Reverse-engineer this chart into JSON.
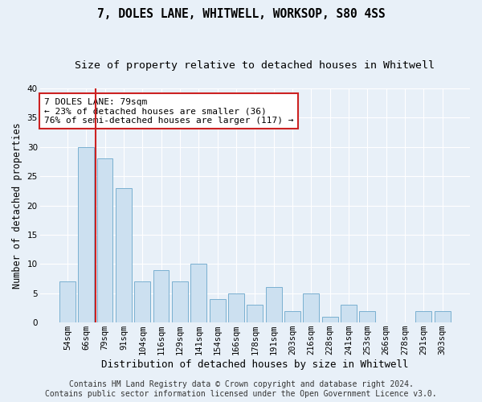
{
  "title": "7, DOLES LANE, WHITWELL, WORKSOP, S80 4SS",
  "subtitle": "Size of property relative to detached houses in Whitwell",
  "xlabel": "Distribution of detached houses by size in Whitwell",
  "ylabel": "Number of detached properties",
  "categories": [
    "54sqm",
    "66sqm",
    "79sqm",
    "91sqm",
    "104sqm",
    "116sqm",
    "129sqm",
    "141sqm",
    "154sqm",
    "166sqm",
    "178sqm",
    "191sqm",
    "203sqm",
    "216sqm",
    "228sqm",
    "241sqm",
    "253sqm",
    "266sqm",
    "278sqm",
    "291sqm",
    "303sqm"
  ],
  "values": [
    7,
    30,
    28,
    23,
    7,
    9,
    7,
    10,
    4,
    5,
    3,
    6,
    2,
    5,
    1,
    3,
    2,
    0,
    0,
    2,
    2
  ],
  "bar_color": "#cce0f0",
  "bar_edge_color": "#7ab0d0",
  "highlight_index": 2,
  "highlight_line_color": "#cc2222",
  "ylim": [
    0,
    40
  ],
  "yticks": [
    0,
    5,
    10,
    15,
    20,
    25,
    30,
    35,
    40
  ],
  "annotation_text": "7 DOLES LANE: 79sqm\n← 23% of detached houses are smaller (36)\n76% of semi-detached houses are larger (117) →",
  "annotation_box_facecolor": "#ffffff",
  "annotation_box_edgecolor": "#cc2222",
  "footer1": "Contains HM Land Registry data © Crown copyright and database right 2024.",
  "footer2": "Contains public sector information licensed under the Open Government Licence v3.0.",
  "background_color": "#e8f0f8",
  "grid_color": "#ffffff",
  "title_fontsize": 10.5,
  "subtitle_fontsize": 9.5,
  "ylabel_fontsize": 8.5,
  "xlabel_fontsize": 9,
  "tick_fontsize": 7.5,
  "annotation_fontsize": 8,
  "footer_fontsize": 7
}
